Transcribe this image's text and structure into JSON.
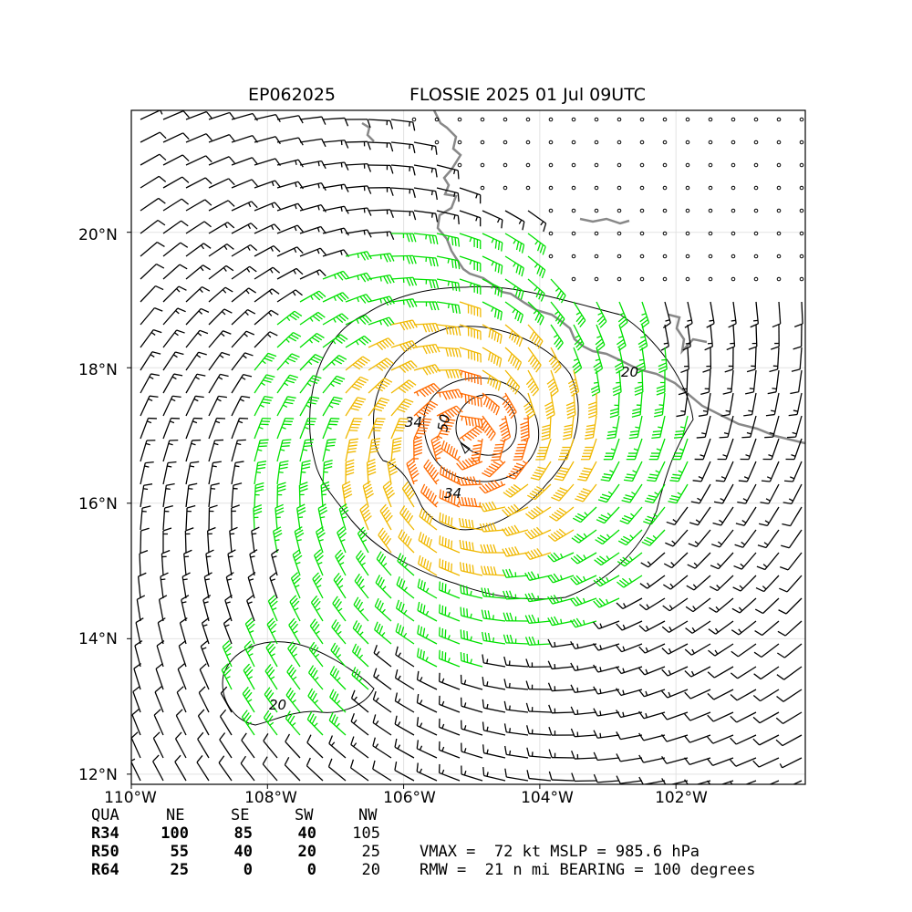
{
  "header": {
    "storm_id": "EP062025",
    "storm_title": "FLOSSIE 2025 01 Jul 09UTC"
  },
  "axes": {
    "lat_labels": [
      "20°N",
      "18°N",
      "16°N",
      "14°N",
      "12°N"
    ],
    "lon_labels": [
      "110°W",
      "108°W",
      "106°W",
      "104°W",
      "102°W"
    ],
    "lat_values": [
      20,
      18,
      16,
      14,
      12
    ],
    "lon_values": [
      -110,
      -108,
      -106,
      -104,
      -102
    ],
    "lon_range": [
      -110,
      -100.1
    ],
    "lat_range": [
      11.85,
      21.8
    ],
    "grid": true
  },
  "contours": {
    "labels": [
      "20",
      "34",
      "50",
      "34",
      "20"
    ],
    "levels_kt": [
      20,
      34,
      50,
      64
    ]
  },
  "wind_radii": {
    "headers": [
      "QUA",
      "NE",
      "SE",
      "SW",
      "NW"
    ],
    "rows": [
      {
        "label": "R34",
        "values": [
          "100",
          "85",
          "40",
          "105"
        ]
      },
      {
        "label": "R50",
        "values": [
          "55",
          "40",
          "20",
          "25"
        ]
      },
      {
        "label": "R64",
        "values": [
          "25",
          "0",
          "0",
          "20"
        ]
      }
    ]
  },
  "storm_info": {
    "line1": "VMAX =  72 kt MSLP = 985.6 hPa",
    "line2": "RMW =  21 n mi BEARING = 100 degrees",
    "center_lon": -105.1,
    "center_lat": 16.9
  },
  "colors": {
    "calm": "#000000",
    "low": "#000000",
    "tropical_storm": "#00e000",
    "strong": "#f0b800",
    "hurricane": "#ff6a00",
    "coast": "#888888"
  }
}
